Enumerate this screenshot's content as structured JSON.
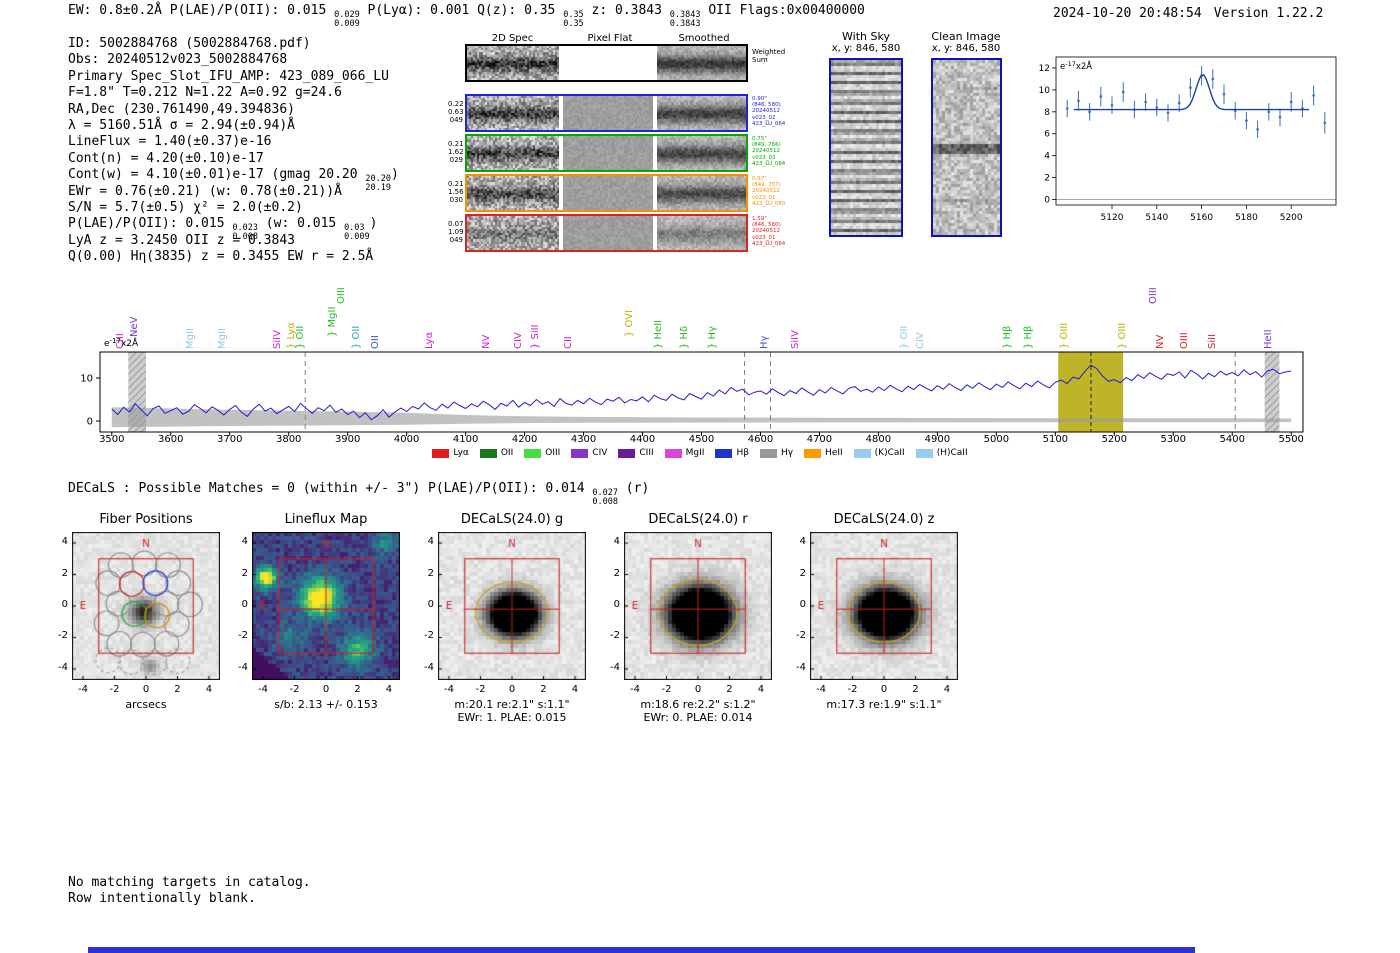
{
  "header": {
    "left": [
      {
        "t": "EW: 0.8±0.2Å  P(LAE)/P(OII): 0.015 "
      },
      {
        "stack": [
          "0.029",
          "0.009"
        ]
      },
      {
        "t": "  P(Lyα): 0.001  Q(z): 0.35 "
      },
      {
        "stack": [
          "0.35",
          "0.35"
        ]
      },
      {
        "t": "  z: 0.3843 "
      },
      {
        "stack": [
          "0.3843",
          "0.3843"
        ]
      },
      {
        "t": " OII   Flags:0x00400000"
      }
    ],
    "timestamp": "2024-10-20 20:48:54",
    "version": "Version 1.22.2"
  },
  "info": {
    "lines": [
      [
        {
          "t": "ID: 5002884768 (5002884768.pdf)"
        }
      ],
      [
        {
          "t": "Obs: 20240512v023_5002884768"
        }
      ],
      [
        {
          "t": "Primary Spec_Slot_IFU_AMP: 423_089_066_LU"
        }
      ],
      [
        {
          "t": "F=1.8\"  T=0.212  N=1.22  A=0.92  g=24.6"
        }
      ],
      [
        {
          "t": "RA,Dec (230.761490,49.394836)"
        }
      ],
      [
        {
          "t": "λ = 5160.51Å  σ = 2.94(±0.94)Å"
        }
      ],
      [
        {
          "t": "LineFlux = 1.40(±0.37)e-16"
        }
      ],
      [
        {
          "t": "Cont(n) = 4.20(±0.10)e-17"
        }
      ],
      [
        {
          "t": "Cont(w) = 4.10(±0.01)e-17 (gmag 20.20 "
        },
        {
          "stack": [
            "20.20",
            "20.19"
          ]
        },
        {
          "t": ")"
        }
      ],
      [
        {
          "t": "EWr = 0.76(±0.21) (w: 0.78(±0.21))Å"
        }
      ],
      [
        {
          "t": "S/N = 5.7(±0.5)   χ² = 2.0(±0.2)"
        }
      ],
      [
        {
          "t": "P(LAE)/P(OII): 0.015 "
        },
        {
          "stack": [
            "0.023",
            "0.008"
          ]
        },
        {
          "t": " (w: 0.015 "
        },
        {
          "stack": [
            "0.03",
            "0.009"
          ]
        },
        {
          "t": ")"
        }
      ],
      [
        {
          "t": "LyA z = 3.2450  OII z = 0.3843"
        }
      ],
      [
        {
          "t": "Q(0.00) Hη(3835) z = 0.3455  EW r = 2.5Å"
        }
      ]
    ]
  },
  "spec2d": {
    "col_headers": [
      "2D Spec",
      "Pixel Flat",
      "Smoothed"
    ],
    "weighted_label": [
      "Weighted",
      "Sum"
    ],
    "rows": [
      {
        "left": [
          "0.22",
          "0.63",
          "049"
        ],
        "right": [
          "0.90\"",
          "(846, 580)",
          "20240512",
          "v023_02",
          "423_LU_064"
        ],
        "color": "#2222dd"
      },
      {
        "left": [
          "0.21",
          "1.62",
          "029"
        ],
        "right": [
          "0.75\"",
          "(849, 766)",
          "20240512",
          "v023_03",
          "423_LU_084"
        ],
        "color": "#00aa00"
      },
      {
        "left": [
          "0.21",
          "1.56",
          "030"
        ],
        "right": [
          "0.97\"",
          "(849, 757)",
          "20240512",
          "v023_01",
          "423_LU_083"
        ],
        "color": "#ff8c00"
      },
      {
        "left": [
          "0.07",
          "1.09",
          "049"
        ],
        "right": [
          "1.59\"",
          "(846, 580)",
          "20240512",
          "v023_01",
          "423_LU_064"
        ],
        "color": "#dd2222"
      }
    ]
  },
  "cutouts2d": {
    "with_sky": {
      "title": "With Sky",
      "subtitle": "x, y: 846, 580"
    },
    "clean": {
      "title": "Clean Image",
      "subtitle": "x, y: 846, 580"
    }
  },
  "decals": {
    "segments": [
      {
        "t": "DECaLS : Possible Matches = 0 (within +/- 3\")  P(LAE)/P(OII): 0.014 "
      },
      {
        "stack": [
          "0.027",
          "0.008"
        ]
      },
      {
        "t": " (r)"
      }
    ]
  },
  "panel_axis": {
    "ticks": [
      -4,
      -2,
      0,
      2,
      4
    ],
    "compass": [
      "N",
      "E"
    ]
  },
  "panels": [
    {
      "type": "fibers",
      "title": "Fiber Positions",
      "xlabel": "arcsecs",
      "captions": []
    },
    {
      "type": "lineflux",
      "title": "Lineflux Map",
      "captions": [
        "s/b: 2.13 +/- 0.153"
      ]
    },
    {
      "type": "decals",
      "title": "DECaLS(24.0) g",
      "captions": [
        "m:20.1 re:2.1\" s:1.1\"",
        "EWr: 1. PLAE: 0.015"
      ]
    },
    {
      "type": "decals",
      "title": "DECaLS(24.0) r",
      "captions": [
        "m:18.6 re:2.2\" s:1.2\"",
        "EWr: 0. PLAE: 0.014"
      ]
    },
    {
      "type": "decals",
      "title": "DECaLS(24.0) z",
      "captions": [
        "m:17.3 re:1.9\" s:1.1\""
      ]
    }
  ],
  "footer": {
    "lines": [
      "No matching targets in catalog.",
      "Row intentionally blank."
    ]
  },
  "chart_data": [
    {
      "id": "line-fit-zoom",
      "type": "scatter",
      "title": "",
      "ylabel_parts": [
        "e",
        "-17",
        "x2Å"
      ],
      "xlim": [
        5095,
        5220
      ],
      "ylim": [
        -0.5,
        13
      ],
      "xticks": [
        5120,
        5140,
        5160,
        5180,
        5200
      ],
      "yticks": [
        0,
        2,
        4,
        6,
        8,
        10,
        12
      ],
      "x": [
        5100,
        5105,
        5110,
        5115,
        5120,
        5125,
        5130,
        5135,
        5140,
        5145,
        5150,
        5155,
        5160,
        5165,
        5170,
        5175,
        5180,
        5185,
        5190,
        5195,
        5200,
        5205,
        5210,
        5215
      ],
      "y": [
        8.3,
        9.0,
        8.0,
        9.4,
        8.6,
        9.8,
        8.2,
        8.9,
        8.4,
        7.9,
        8.8,
        10.2,
        11.3,
        11.0,
        9.6,
        8.1,
        7.2,
        6.4,
        8.0,
        7.5,
        8.9,
        8.3,
        9.5,
        7.0
      ],
      "yerr": [
        0.8,
        0.9,
        0.8,
        0.9,
        0.8,
        0.9,
        0.8,
        0.8,
        0.8,
        0.8,
        0.8,
        0.9,
        0.9,
        0.9,
        0.9,
        0.8,
        0.8,
        0.8,
        0.8,
        0.8,
        0.9,
        0.8,
        0.9,
        1.0
      ],
      "fit": {
        "center": 5160.51,
        "sigma": 2.94,
        "continuum": 8.2,
        "peak": 11.4
      },
      "point_color": "#3a6fb5",
      "fit_color": "#1a3faa"
    },
    {
      "id": "full-spectrum",
      "type": "line",
      "title": "",
      "ylabel_parts": [
        "e",
        "-17",
        "x2Å"
      ],
      "xlim": [
        3480,
        5520
      ],
      "ylim": [
        -2.5,
        16
      ],
      "xticks": [
        3500,
        3600,
        3700,
        3800,
        3900,
        4000,
        4100,
        4200,
        4300,
        4400,
        4500,
        4600,
        4700,
        4800,
        4900,
        5000,
        5100,
        5200,
        5300,
        5400,
        5500
      ],
      "yticks": [
        0,
        10
      ],
      "x_start": 3500,
      "x_step": 10,
      "flux": [
        2.8,
        1.5,
        3.2,
        2.1,
        4.0,
        2.6,
        1.2,
        2.9,
        3.5,
        1.8,
        2.4,
        3.1,
        1.6,
        2.2,
        3.8,
        2.9,
        1.9,
        3.3,
        2.5,
        1.4,
        2.7,
        3.6,
        2.0,
        1.1,
        2.8,
        3.9,
        2.3,
        3.0,
        1.7,
        2.6,
        3.4,
        2.2,
        4.1,
        2.9,
        1.8,
        3.1,
        2.4,
        3.7,
        2.0,
        2.8,
        1.5,
        2.3,
        0.8,
        1.9,
        0.3,
        1.2,
        2.6,
        0.9,
        2.1,
        3.0,
        2.2,
        3.4,
        2.8,
        4.2,
        3.1,
        2.5,
        3.9,
        3.0,
        4.4,
        3.6,
        2.9,
        4.0,
        3.3,
        4.6,
        3.8,
        2.7,
        4.1,
        3.5,
        4.8,
        3.2,
        4.3,
        3.6,
        5.0,
        3.9,
        4.5,
        3.4,
        5.2,
        4.1,
        3.7,
        4.8,
        4.0,
        5.3,
        4.4,
        3.8,
        5.1,
        4.6,
        5.5,
        4.2,
        5.0,
        4.7,
        5.6,
        4.5,
        6.0,
        5.2,
        4.8,
        6.2,
        5.4,
        4.9,
        6.4,
        5.7,
        5.1,
        6.6,
        5.8,
        7.2,
        6.3,
        7.8,
        6.9,
        7.4,
        6.1,
        6.7,
        7.0,
        6.2,
        7.5,
        6.6,
        5.9,
        7.1,
        6.4,
        7.7,
        6.8,
        6.0,
        7.3,
        6.5,
        7.8,
        7.0,
        6.3,
        7.6,
        8.0,
        6.9,
        7.4,
        6.7,
        7.9,
        7.1,
        8.3,
        7.5,
        6.8,
        8.1,
        7.3,
        8.5,
        7.7,
        7.0,
        8.2,
        7.4,
        8.7,
        7.8,
        7.1,
        8.4,
        7.6,
        8.9,
        8.0,
        7.3,
        8.6,
        7.8,
        9.1,
        8.2,
        7.5,
        8.8,
        8.0,
        9.3,
        8.4,
        7.7,
        9.0,
        9.5,
        8.7,
        10.2,
        9.8,
        11.5,
        13.0,
        12.2,
        10.5,
        9.2,
        9.6,
        8.9,
        10.1,
        9.4,
        10.8,
        9.9,
        11.2,
        10.4,
        9.7,
        11.0,
        10.6,
        11.4,
        10.0,
        11.8,
        10.9,
        9.8,
        11.1,
        10.3,
        11.6,
        10.7,
        11.3,
        10.5,
        11.9,
        10.8,
        11.5,
        10.2,
        11.7,
        12.0,
        11.0,
        11.4,
        11.6
      ],
      "error_band_upper": [
        3.2,
        2.9,
        2.6,
        2.4,
        2.2,
        1.9,
        1.4,
        1.1,
        0.95,
        0.88,
        0.82,
        0.78,
        0.75,
        0.72,
        0.7,
        0.68,
        0.66,
        0.64,
        0.62,
        0.6,
        0.58
      ],
      "highlight_band": [
        5105,
        5215
      ],
      "highlight_color": "#b6ac10",
      "hatch_bands": [
        [
          3528,
          3558
        ],
        [
          5455,
          5480
        ]
      ],
      "dashed_lines_gray": [
        3828,
        4573,
        4617,
        5405
      ],
      "dashed_lines_black": [
        5160.5
      ],
      "line_color": "#1f1fd0",
      "line_labels": [
        {
          "label": "CIII",
          "wl": 3516,
          "color": "#cc22cc",
          "tier": 0,
          "brace": false
        },
        {
          "label": "NeV",
          "wl": 3540,
          "color": "#7733bb",
          "tier": 1,
          "brace": false
        },
        {
          "label": "MgII",
          "wl": 3635,
          "color": "#8fc8e8",
          "tier": 0,
          "brace": false
        },
        {
          "label": "MgII",
          "wl": 3688,
          "color": "#8fc8e8",
          "tier": 0,
          "brace": false
        },
        {
          "label": "SiIV",
          "wl": 3782,
          "color": "#cc22cc",
          "tier": 0,
          "brace": false
        },
        {
          "label": "Lyα",
          "wl": 3805,
          "color": "#b8b400",
          "tier": 0,
          "brace": true
        },
        {
          "label": "OII",
          "wl": 3820,
          "color": "#22bb22",
          "tier": 0,
          "brace": true
        },
        {
          "label": "MgII",
          "wl": 3875,
          "color": "#22bb22",
          "tier": 1,
          "brace": true
        },
        {
          "label": "OIII",
          "wl": 3890,
          "color": "#22bb22",
          "tier": 2,
          "brace": false
        },
        {
          "label": "OII",
          "wl": 3915,
          "color": "#2aa9a9",
          "tier": 0,
          "brace": true
        },
        {
          "label": "OII",
          "wl": 3948,
          "color": "#3355cc",
          "tier": 0,
          "brace": false
        },
        {
          "label": "Lyα",
          "wl": 4040,
          "color": "#cc22cc",
          "tier": 0,
          "brace": false
        },
        {
          "label": "NV",
          "wl": 4137,
          "color": "#cc22cc",
          "tier": 0,
          "brace": false
        },
        {
          "label": "CIV",
          "wl": 4190,
          "color": "#cc22cc",
          "tier": 0,
          "brace": false
        },
        {
          "label": "SiII",
          "wl": 4220,
          "color": "#cc22cc",
          "tier": 0,
          "brace": true
        },
        {
          "label": "CII",
          "wl": 4275,
          "color": "#cc22cc",
          "tier": 0,
          "brace": false
        },
        {
          "label": "OVI",
          "wl": 4378,
          "color": "#b8b400",
          "tier": 1,
          "brace": true
        },
        {
          "label": "HeII",
          "wl": 4428,
          "color": "#22bb22",
          "tier": 0,
          "brace": true
        },
        {
          "label": "Hδ",
          "wl": 4472,
          "color": "#22bb22",
          "tier": 0,
          "brace": true
        },
        {
          "label": "Hγ",
          "wl": 4520,
          "color": "#22bb22",
          "tier": 0,
          "brace": true
        },
        {
          "label": "Hγ",
          "wl": 4607,
          "color": "#3355cc",
          "tier": 0,
          "brace": false
        },
        {
          "label": "SiIV",
          "wl": 4660,
          "color": "#cc22cc",
          "tier": 0,
          "brace": false
        },
        {
          "label": "OII",
          "wl": 4845,
          "color": "#8fc8e8",
          "tier": 0,
          "brace": true
        },
        {
          "label": "CIV",
          "wl": 4872,
          "color": "#8fc8e8",
          "tier": 0,
          "brace": false
        },
        {
          "label": "Hβ",
          "wl": 5020,
          "color": "#22bb22",
          "tier": 0,
          "brace": true
        },
        {
          "label": "Hβ",
          "wl": 5056,
          "color": "#22bb22",
          "tier": 0,
          "brace": true
        },
        {
          "label": "OIII",
          "wl": 5117,
          "color": "#b8b400",
          "tier": 0,
          "brace": true
        },
        {
          "label": "OIII",
          "wl": 5215,
          "color": "#b8b400",
          "tier": 0,
          "brace": true
        },
        {
          "label": "OIII",
          "wl": 5268,
          "color": "#7733bb",
          "tier": 2,
          "brace": false
        },
        {
          "label": "NV",
          "wl": 5280,
          "color": "#dd2222",
          "tier": 0,
          "brace": false
        },
        {
          "label": "OIII",
          "wl": 5320,
          "color": "#dd2222",
          "tier": 0,
          "brace": false
        },
        {
          "label": "SiII",
          "wl": 5368,
          "color": "#dd2222",
          "tier": 0,
          "brace": false
        },
        {
          "label": "HeII",
          "wl": 5462,
          "color": "#7733bb",
          "tier": 0,
          "brace": false
        }
      ],
      "legend": [
        {
          "label": "Lyα",
          "color": "#e41a1c"
        },
        {
          "label": "OII",
          "color": "#207520"
        },
        {
          "label": "OIII",
          "color": "#44dd44"
        },
        {
          "label": "CIV",
          "color": "#8833cc"
        },
        {
          "label": "CIII",
          "color": "#6a1b9a"
        },
        {
          "label": "MgII",
          "color": "#dd44dd"
        },
        {
          "label": "Hβ",
          "color": "#2233cc"
        },
        {
          "label": "Hγ",
          "color": "#999999"
        },
        {
          "label": "HeII",
          "color": "#ff9900"
        },
        {
          "label": "(K)CaII",
          "color": "#99ccee"
        },
        {
          "label": "(H)CaII",
          "color": "#99ccee"
        }
      ]
    }
  ]
}
